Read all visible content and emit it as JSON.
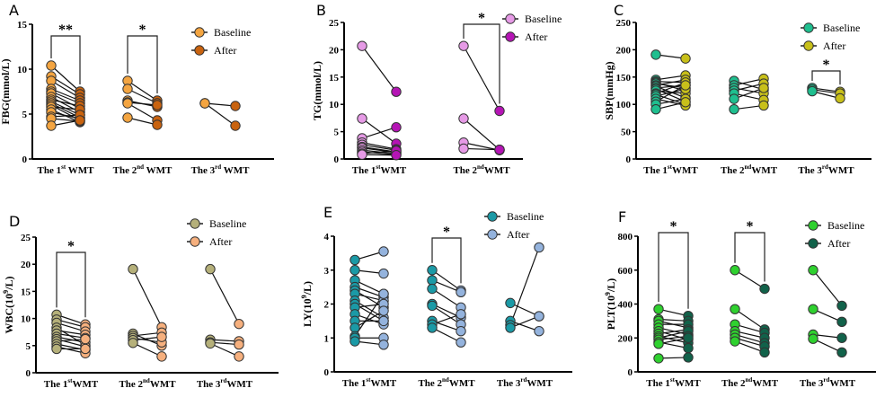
{
  "chart_data": [
    {
      "type": "paired-scatter",
      "panel": "A",
      "ylabel": "FBG(mmol/L)",
      "ylim": [
        0,
        15
      ],
      "yticks": [
        0,
        5,
        10,
        15
      ],
      "groups": [
        {
          "label": "The 1",
          "sup": "st",
          "suffix": " WMT",
          "pairs": [
            [
              10.4,
              7.5
            ],
            [
              9.2,
              7.2
            ],
            [
              8.7,
              6.8
            ],
            [
              7.8,
              6.5
            ],
            [
              7.5,
              6.2
            ],
            [
              7.3,
              5.6
            ],
            [
              6.9,
              5.2
            ],
            [
              6.6,
              5.9
            ],
            [
              6.4,
              4.9
            ],
            [
              6.2,
              4.6
            ],
            [
              6.0,
              4.3
            ],
            [
              5.8,
              5.5
            ],
            [
              5.5,
              4.1
            ],
            [
              5.2,
              4.5
            ],
            [
              4.7,
              4.9
            ],
            [
              4.5,
              4.2
            ],
            [
              3.7,
              4.3
            ]
          ]
        },
        {
          "label": "The 2",
          "sup": "nd",
          "suffix": " WMT",
          "pairs": [
            [
              8.7,
              6.5
            ],
            [
              7.8,
              6.2
            ],
            [
              6.5,
              5.8
            ],
            [
              6.3,
              6.0
            ],
            [
              6.2,
              4.3
            ],
            [
              4.6,
              3.8
            ]
          ]
        },
        {
          "label": "The 3",
          "sup": "rd",
          "suffix": " WMT",
          "pairs": [
            [
              6.2,
              5.9
            ],
            [
              6.2,
              3.7
            ]
          ]
        }
      ],
      "significance": [
        {
          "group": 0,
          "text": "**"
        },
        {
          "group": 1,
          "text": "*"
        }
      ],
      "legend": [
        {
          "name": "Baseline",
          "color": "#f4a541"
        },
        {
          "name": "After",
          "color": "#c9630f"
        }
      ],
      "legend_position": "top-right"
    },
    {
      "type": "paired-scatter",
      "panel": "B",
      "ylabel": "TG(mmol/L)",
      "ylim": [
        0,
        25
      ],
      "yticks": [
        0,
        5,
        10,
        15,
        20,
        25
      ],
      "groups": [
        {
          "label": "The 1",
          "sup": "st",
          "suffix": "WMT",
          "pairs": [
            [
              20.7,
              12.3
            ],
            [
              7.4,
              2.8
            ],
            [
              3.8,
              5.8
            ],
            [
              3.0,
              1.8
            ],
            [
              2.6,
              1.6
            ],
            [
              2.2,
              1.3
            ],
            [
              2.0,
              1.2
            ],
            [
              1.6,
              1.0
            ],
            [
              1.3,
              0.8
            ],
            [
              1.0,
              1.5
            ],
            [
              0.8,
              0.7
            ]
          ]
        },
        {
          "label": "The 2",
          "sup": "nd",
          "suffix": "WMT",
          "pairs": [
            [
              20.7,
              8.8
            ],
            [
              7.4,
              1.7
            ],
            [
              3.0,
              1.6
            ],
            [
              1.9,
              1.7
            ]
          ]
        }
      ],
      "significance": [
        {
          "group": 1,
          "text": "*"
        }
      ],
      "legend": [
        {
          "name": "Baseline",
          "color": "#e69ae6"
        },
        {
          "name": "After",
          "color": "#b514b5"
        }
      ],
      "legend_position": "top-right"
    },
    {
      "type": "paired-scatter",
      "panel": "C",
      "ylabel": "SBP(mmHg)",
      "ylim": [
        0,
        250
      ],
      "yticks": [
        0,
        50,
        100,
        150,
        200,
        250
      ],
      "groups": [
        {
          "label": "The 1",
          "sup": "st",
          "suffix": "WMT",
          "pairs": [
            [
              191,
              184
            ],
            [
              145,
              153
            ],
            [
              142,
              140
            ],
            [
              140,
              125
            ],
            [
              138,
              130
            ],
            [
              135,
              145
            ],
            [
              133,
              112
            ],
            [
              130,
              135
            ],
            [
              128,
              105
            ],
            [
              125,
              120
            ],
            [
              120,
              140
            ],
            [
              118,
              100
            ],
            [
              115,
              128
            ],
            [
              110,
              98
            ],
            [
              105,
              135
            ],
            [
              100,
              110
            ],
            [
              91,
              104
            ]
          ]
        },
        {
          "label": "The 2",
          "sup": "nd",
          "suffix": "WMT",
          "pairs": [
            [
              143,
              127
            ],
            [
              135,
              147
            ],
            [
              130,
              120
            ],
            [
              125,
              138
            ],
            [
              120,
              108
            ],
            [
              110,
              130
            ],
            [
              91,
              98
            ]
          ]
        },
        {
          "label": "The 3",
          "sup": "rd",
          "suffix": "WMT",
          "pairs": [
            [
              130,
              123
            ],
            [
              127,
              120
            ],
            [
              124,
              111
            ]
          ]
        }
      ],
      "significance": [
        {
          "group": 2,
          "text": "*"
        }
      ],
      "legend": [
        {
          "name": "Baseline",
          "color": "#1fbf8f"
        },
        {
          "name": "After",
          "color": "#c8c01a"
        }
      ],
      "legend_position": "top-right"
    },
    {
      "type": "paired-scatter",
      "panel": "D",
      "ylabel": "WBC(10⁹/L)",
      "ylim": [
        0,
        25
      ],
      "yticks": [
        0,
        5,
        10,
        15,
        20,
        25
      ],
      "groups": [
        {
          "label": "The 1",
          "sup": "st",
          "suffix": "WMT",
          "pairs": [
            [
              10.7,
              8.9
            ],
            [
              9.8,
              8.4
            ],
            [
              9.2,
              7.6
            ],
            [
              8.3,
              5.1
            ],
            [
              7.8,
              7.0
            ],
            [
              7.2,
              6.4
            ],
            [
              6.6,
              5.6
            ],
            [
              6.2,
              4.8
            ],
            [
              5.8,
              6.2
            ],
            [
              5.3,
              4.2
            ],
            [
              4.8,
              3.6
            ],
            [
              4.4,
              4.4
            ]
          ]
        },
        {
          "label": "The 2",
          "sup": "nd",
          "suffix": "WMT",
          "pairs": [
            [
              19.1,
              8.4
            ],
            [
              7.2,
              5.0
            ],
            [
              6.8,
              7.4
            ],
            [
              6.4,
              5.6
            ],
            [
              6.0,
              6.6
            ],
            [
              5.5,
              3.0
            ]
          ]
        },
        {
          "label": "The 3",
          "sup": "rd",
          "suffix": "WMT",
          "pairs": [
            [
              19.1,
              9.0
            ],
            [
              6.1,
              5.8
            ],
            [
              5.6,
              5.2
            ],
            [
              5.4,
              3.0
            ]
          ]
        }
      ],
      "significance": [
        {
          "group": 0,
          "text": "*"
        }
      ],
      "legend": [
        {
          "name": "Baseline",
          "color": "#b5b07a"
        },
        {
          "name": "After",
          "color": "#f6b07e"
        }
      ],
      "legend_position": "top-right"
    },
    {
      "type": "paired-scatter",
      "panel": "E",
      "ylabel": "LY(10⁹/L)",
      "ylim": [
        0,
        4
      ],
      "yticks": [
        0,
        1,
        2,
        3,
        4
      ],
      "groups": [
        {
          "label": "The 1",
          "sup": "st",
          "suffix": "WMT",
          "pairs": [
            [
              3.3,
              3.55
            ],
            [
              3.0,
              2.9
            ],
            [
              2.7,
              2.3
            ],
            [
              2.5,
              2.2
            ],
            [
              2.4,
              1.9
            ],
            [
              2.3,
              2.1
            ],
            [
              2.1,
              1.6
            ],
            [
              2.0,
              1.5
            ],
            [
              1.9,
              2.0
            ],
            [
              1.7,
              1.4
            ],
            [
              1.5,
              1.5
            ],
            [
              1.3,
              1.8
            ],
            [
              1.05,
              2.3
            ],
            [
              1.0,
              1.0
            ],
            [
              0.9,
              0.8
            ]
          ]
        },
        {
          "label": "The 2",
          "sup": "nd",
          "suffix": "WMT",
          "pairs": [
            [
              3.0,
              2.4
            ],
            [
              2.7,
              2.35
            ],
            [
              2.45,
              1.9
            ],
            [
              2.0,
              1.6
            ],
            [
              1.95,
              1.4
            ],
            [
              1.5,
              1.2
            ],
            [
              1.4,
              1.7
            ],
            [
              1.3,
              0.87
            ]
          ]
        },
        {
          "label": "The 3",
          "sup": "rd",
          "suffix": "WMT",
          "pairs": [
            [
              2.03,
              1.64
            ],
            [
              1.5,
              1.2
            ],
            [
              1.38,
              3.67
            ],
            [
              1.3,
              1.64
            ]
          ]
        }
      ],
      "significance": [
        {
          "group": 1,
          "text": "*"
        }
      ],
      "legend": [
        {
          "name": "Baseline",
          "color": "#1b9aa6"
        },
        {
          "name": "After",
          "color": "#94b3dd"
        }
      ],
      "legend_position": "top-right"
    },
    {
      "type": "paired-scatter",
      "panel": "F",
      "ylabel": "PLT(10⁹/L)",
      "ylim": [
        0,
        800
      ],
      "yticks": [
        0,
        200,
        400,
        600,
        800
      ],
      "groups": [
        {
          "label": "The 1",
          "sup": "st",
          "suffix": "WMT",
          "pairs": [
            [
              370,
              330
            ],
            [
              310,
              300
            ],
            [
              300,
              260
            ],
            [
              280,
              280
            ],
            [
              260,
              220
            ],
            [
              240,
              190
            ],
            [
              225,
              250
            ],
            [
              210,
              170
            ],
            [
              200,
              240
            ],
            [
              190,
              210
            ],
            [
              175,
              140
            ],
            [
              165,
              200
            ],
            [
              80,
              85
            ]
          ]
        },
        {
          "label": "The 2",
          "sup": "nd",
          "suffix": "WMT",
          "pairs": [
            [
              600,
              490
            ],
            [
              370,
              250
            ],
            [
              280,
              230
            ],
            [
              240,
              200
            ],
            [
              220,
              170
            ],
            [
              200,
              150
            ],
            [
              180,
              115
            ]
          ]
        },
        {
          "label": "The 3",
          "sup": "rd",
          "suffix": "WMT",
          "pairs": [
            [
              600,
              390
            ],
            [
              370,
              295
            ],
            [
              220,
              200
            ],
            [
              195,
              115
            ]
          ]
        }
      ],
      "significance": [
        {
          "group": 0,
          "text": "*"
        },
        {
          "group": 1,
          "text": "*"
        }
      ],
      "legend": [
        {
          "name": "Baseline",
          "color": "#2fd12f"
        },
        {
          "name": "After",
          "color": "#11624a"
        }
      ],
      "legend_position": "top-right"
    }
  ]
}
